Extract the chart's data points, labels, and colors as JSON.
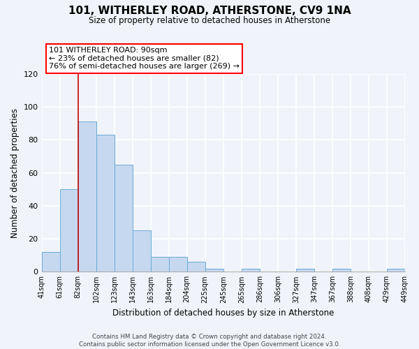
{
  "title": "101, WITHERLEY ROAD, ATHERSTONE, CV9 1NA",
  "subtitle": "Size of property relative to detached houses in Atherstone",
  "xlabel": "Distribution of detached houses by size in Atherstone",
  "ylabel": "Number of detached properties",
  "bin_labels": [
    "41sqm",
    "61sqm",
    "82sqm",
    "102sqm",
    "123sqm",
    "143sqm",
    "163sqm",
    "184sqm",
    "204sqm",
    "225sqm",
    "245sqm",
    "265sqm",
    "286sqm",
    "306sqm",
    "327sqm",
    "347sqm",
    "367sqm",
    "388sqm",
    "408sqm",
    "429sqm",
    "449sqm"
  ],
  "bar_heights": [
    12,
    50,
    91,
    83,
    65,
    25,
    9,
    9,
    6,
    2,
    0,
    2,
    0,
    0,
    2,
    0,
    2,
    0,
    0,
    2
  ],
  "bar_color": "#c5d8f0",
  "bar_edge_color": "#6aaad4",
  "red_line_index": 2,
  "ylim": [
    0,
    120
  ],
  "yticks": [
    0,
    20,
    40,
    60,
    80,
    100,
    120
  ],
  "annotation_text_line1": "101 WITHERLEY ROAD: 90sqm",
  "annotation_text_line2": "← 23% of detached houses are smaller (82)",
  "annotation_text_line3": "76% of semi-detached houses are larger (269) →",
  "footer_line1": "Contains HM Land Registry data © Crown copyright and database right 2024.",
  "footer_line2": "Contains public sector information licensed under the Open Government Licence v3.0.",
  "background_color": "#f0f4fa"
}
